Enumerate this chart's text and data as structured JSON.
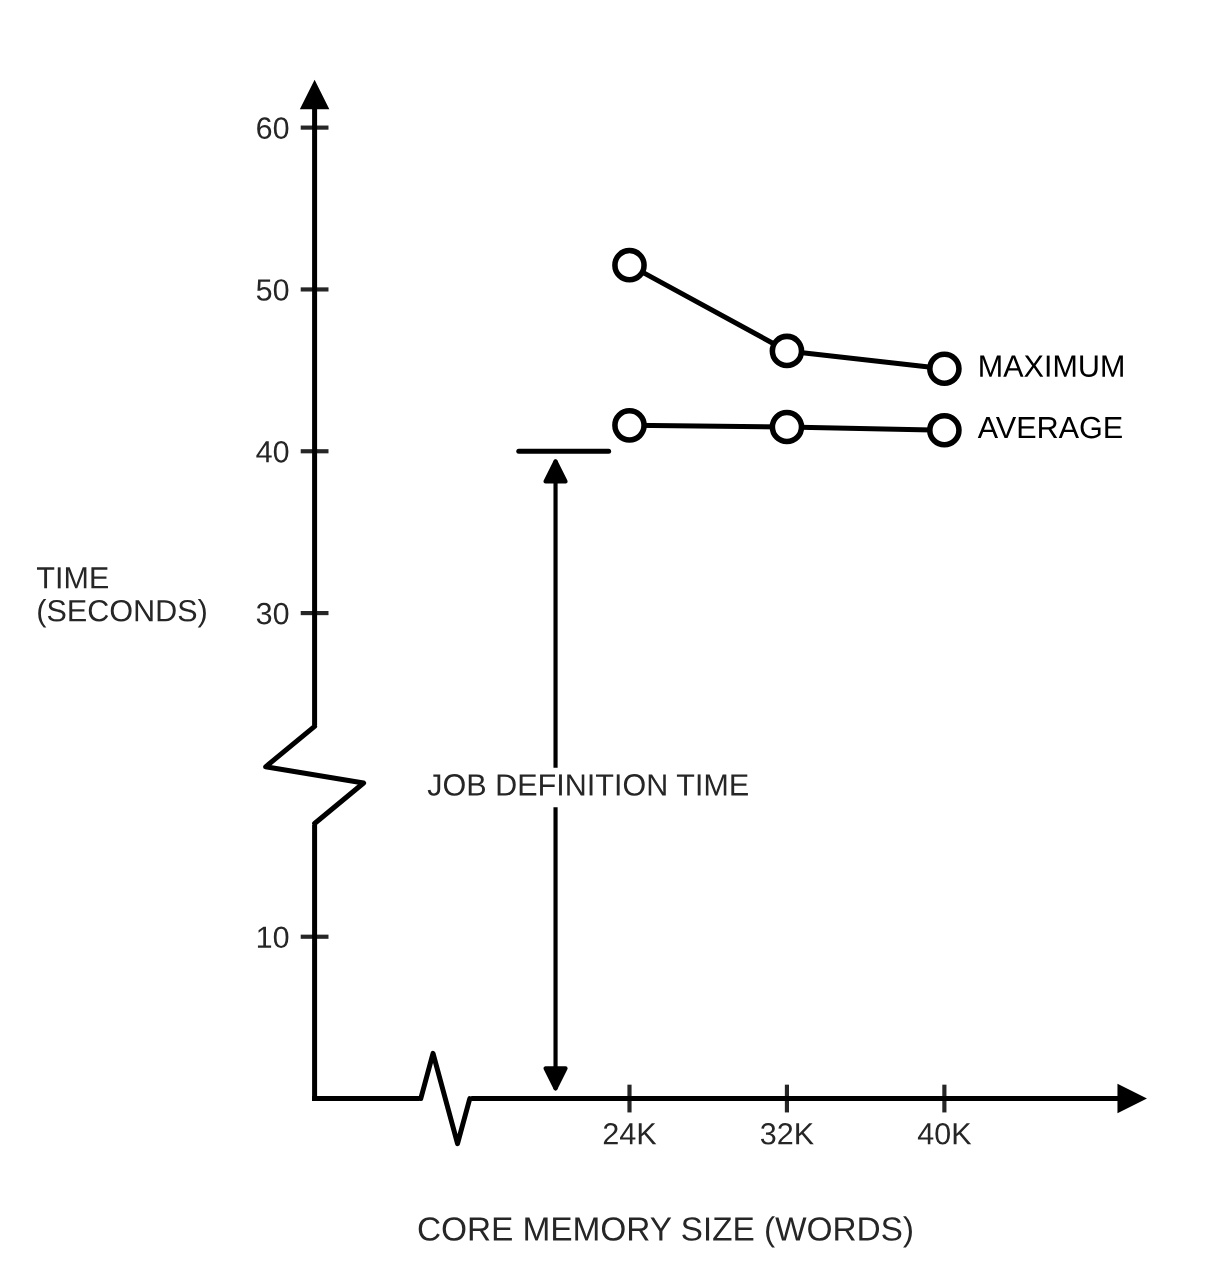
{
  "chart_data": {
    "type": "line",
    "xlabel": "CORE MEMORY SIZE (WORDS)",
    "ylabel": "TIME\n(SECONDS)",
    "x": [
      24,
      32,
      40
    ],
    "xlim": [
      8,
      49.5
    ],
    "xticks": [
      {
        "value": 24,
        "label": "24K"
      },
      {
        "value": 32,
        "label": "32K"
      },
      {
        "value": 40,
        "label": "40K"
      }
    ],
    "series": [
      {
        "name": "MAXIMUM",
        "color": "#000000",
        "values": [
          51.5,
          46.2,
          45.1
        ]
      },
      {
        "name": "AVERAGE",
        "color": "#000000",
        "values": [
          41.6,
          41.5,
          41.3
        ]
      }
    ],
    "ylim": [
      0,
      62
    ],
    "yticks": [
      10,
      30,
      40,
      50,
      60
    ],
    "ref_lines": [
      {
        "axis": "y",
        "value": 40
      }
    ],
    "annotations": [
      "JOB DEFINITION TIME"
    ],
    "marker": "circle",
    "line_style": "solid",
    "grid": false,
    "legend": false
  }
}
